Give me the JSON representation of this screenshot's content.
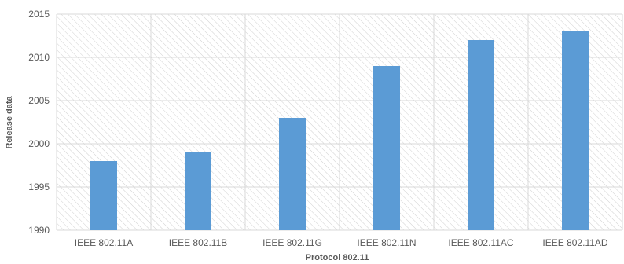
{
  "chart_data": {
    "type": "bar",
    "title": "",
    "xlabel": "Protocol 802.11",
    "ylabel": "Release data",
    "categories": [
      "IEEE 802.11A",
      "IEEE 802.11B",
      "IEEE 802.11G",
      "IEEE 802.11N",
      "IEEE 802.11AC",
      "IEEE 802.11AD"
    ],
    "values": [
      1998,
      1999,
      2003,
      2009,
      2012,
      2013
    ],
    "ylim": [
      1990,
      2015
    ],
    "yticks": [
      1990,
      1995,
      2000,
      2005,
      2010,
      2015
    ],
    "grid": true,
    "legend": "none",
    "colors": {
      "bar": "#5B9BD5",
      "grid": "#D9D9D9",
      "hatch": "#CFCFCF",
      "text": "#595959"
    }
  }
}
